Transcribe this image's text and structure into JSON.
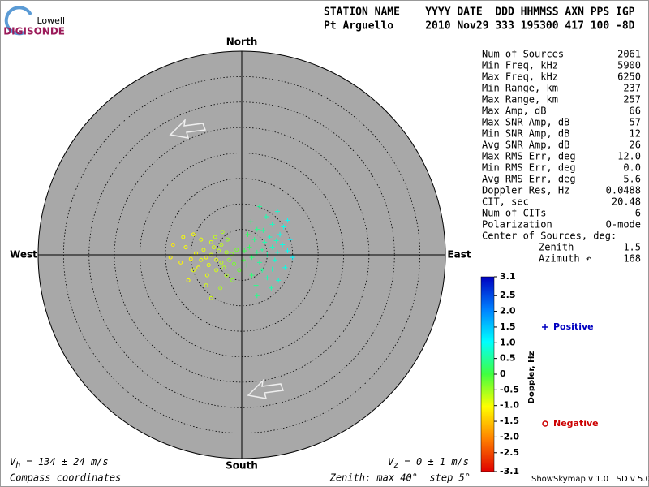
{
  "logo": {
    "top": "Lowell",
    "bottom": "DIGISONDE"
  },
  "header": {
    "columns": "STATION NAME    YYYY DATE  DDD HHMMSS AXN PPS IGP",
    "values": "Pt Arguello     2010 Nov29 333 195300 417 100 -8D"
  },
  "stats": {
    "rows": [
      {
        "label": "Num of Sources",
        "value": 2061
      },
      {
        "label": "Min Freq, kHz",
        "value": 5900
      },
      {
        "label": "Max Freq, kHz",
        "value": 6250
      },
      {
        "label": "Min Range, km",
        "value": 237
      },
      {
        "label": "Max Range, km",
        "value": 257
      },
      {
        "label": "Max Amp, dB",
        "value": 66
      },
      {
        "label": "Max SNR Amp, dB",
        "value": 57
      },
      {
        "label": "Min SNR Amp, dB",
        "value": 12
      },
      {
        "label": "Avg SNR Amp, dB",
        "value": 26
      },
      {
        "label": "Max RMS Err, deg",
        "value": "12.0"
      },
      {
        "label": "Min RMS Err, deg",
        "value": "0.0"
      },
      {
        "label": "Avg RMS Err, deg",
        "value": 5.6
      },
      {
        "label": "Doppler Res, Hz",
        "value": 0.0488
      },
      {
        "label": "CIT, sec",
        "value": 20.48
      },
      {
        "label": "Num of CITs",
        "value": 6
      },
      {
        "label": "Polarization",
        "value": "O-mode"
      }
    ],
    "center_title": "Center of Sources, deg:",
    "center_rows": [
      {
        "label": "Zenith",
        "value": 1.5
      },
      {
        "label": "Azimuth ↶",
        "value": 168
      }
    ]
  },
  "chart_data": {
    "type": "scatter",
    "directions": {
      "north": "North",
      "south": "South",
      "east": "East",
      "west": "West"
    },
    "rlim": [
      0,
      40
    ],
    "rticks": [
      5,
      10,
      15,
      20,
      25,
      30,
      35,
      40
    ],
    "colorbar": {
      "label": "Doppler, Hz",
      "lim": [
        -3.1,
        3.1
      ],
      "colors": [
        "#e00000",
        "#ff8000",
        "#ffff00",
        "#40ff40",
        "#00ffff",
        "#0080ff",
        "#0000c0"
      ],
      "ticks": [
        3.1,
        2.5,
        {
          "value": 2,
          "label": "2.0"
        },
        1.5,
        {
          "value": 1,
          "label": "1.0"
        },
        0.5,
        0,
        -0.5,
        {
          "value": -1,
          "label": "-1.0"
        },
        -1.5,
        {
          "value": -2,
          "label": "-2.0"
        },
        -2.5,
        -3.1
      ]
    },
    "series": [
      {
        "name": "Positive",
        "marker": "+",
        "color": "#0000c0",
        "x": [
          3,
          4,
          5,
          2,
          6,
          4.5,
          3.5,
          7,
          1.5,
          5.5,
          6.5,
          2.5,
          8,
          4,
          7.5,
          1,
          3,
          9,
          5,
          6,
          0.5,
          8.5,
          2,
          4.8,
          7,
          3.5,
          9.5,
          1.2,
          5.8,
          3,
          7.2,
          10,
          0.3,
          6.8,
          4.2,
          2.8,
          8.2,
          1.8,
          6,
          9
        ],
        "y": [
          0.5,
          1,
          0,
          -0.5,
          1.5,
          2.5,
          -1.5,
          0.5,
          1.5,
          3.5,
          -1,
          3,
          2,
          -3,
          4,
          -2,
          5,
          0.8,
          -4.5,
          6,
          0.8,
          -2.5,
          -4,
          7.5,
          8.5,
          9.5,
          3,
          4,
          -6.5,
          -8,
          -5,
          -0.5,
          -1,
          2.8,
          4.8,
          -6,
          5.5,
          6.5,
          -2.8,
          6.8
        ],
        "doppler": [
          0.4,
          0.5,
          0.6,
          0.3,
          0.7,
          0.6,
          0.5,
          0.8,
          0.2,
          0.7,
          0.8,
          0.4,
          0.9,
          0.5,
          0.9,
          0.2,
          0.4,
          1.0,
          0.6,
          0.7,
          0.1,
          0.9,
          0.3,
          0.6,
          0.8,
          0.5,
          1.1,
          0.2,
          0.6,
          0.4,
          0.8,
          1.1,
          0.0,
          0.7,
          0.5,
          0.4,
          0.9,
          0.3,
          0.7,
          1.0
        ]
      },
      {
        "name": "Negative",
        "marker": "o",
        "color": "#cc0000",
        "x": [
          -5,
          -6,
          -4,
          -7,
          -3,
          -8,
          -5.5,
          -6.5,
          -4.5,
          -2.5,
          -9,
          -7.5,
          -3.5,
          -5,
          -10,
          -6,
          -8.5,
          -2,
          -4,
          -11,
          -9.5,
          -1.5,
          -6.8,
          -12,
          -3,
          -5.2,
          -13.5,
          -7,
          -1,
          -8,
          -4.2,
          -9.5,
          -0.5,
          -2.8,
          -10.5,
          -6,
          -14,
          -1.8,
          -11.5,
          -3.8
        ],
        "y": [
          -1,
          0,
          -1.5,
          -0.5,
          0.5,
          -1,
          1.5,
          -2,
          0.8,
          -1,
          0.3,
          1,
          -2.5,
          -3,
          -0.8,
          2.5,
          -2.5,
          0.2,
          2,
          1.5,
          -3,
          -1.8,
          -4,
          -1.5,
          -4,
          3.5,
          2,
          -6,
          1,
          3,
          -6.5,
          4,
          -3,
          3,
          -5,
          -8.5,
          -0.5,
          -5,
          3.5,
          4.5
        ],
        "doppler": [
          -0.9,
          -0.8,
          -0.7,
          -1.0,
          -0.6,
          -0.9,
          -0.8,
          -0.9,
          -0.7,
          -0.5,
          -1.0,
          -0.9,
          -0.6,
          -0.8,
          -1.1,
          -0.8,
          -1.0,
          -0.4,
          -0.7,
          -1.0,
          -0.9,
          -0.3,
          -0.9,
          -1.1,
          -0.6,
          -0.7,
          -1.2,
          -0.8,
          -0.3,
          -0.9,
          -0.6,
          -1.0,
          -0.2,
          -0.5,
          -1.0,
          -0.8,
          -1.1,
          -0.4,
          -1.0,
          -0.6
        ]
      }
    ],
    "velocity_h": {
      "symbol": "V",
      "subscript": "h",
      "text": " = 134 ± 24 m/s"
    },
    "velocity_z": {
      "symbol": "V",
      "subscript": "z",
      "text": " = 0 ± 1 m/s"
    },
    "coordinates": "Compass coordinates",
    "zenith_note": "Zenith: max 40°  step 5°",
    "software": "ShowSkymap v 1.0   SD v 5.0"
  }
}
